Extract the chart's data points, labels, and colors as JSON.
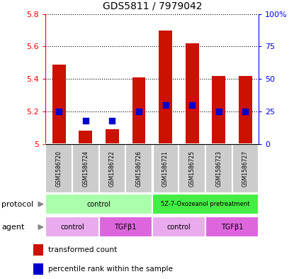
{
  "title": "GDS5811 / 7979042",
  "samples": [
    "GSM1586720",
    "GSM1586724",
    "GSM1586722",
    "GSM1586726",
    "GSM1586721",
    "GSM1586725",
    "GSM1586723",
    "GSM1586727"
  ],
  "red_values": [
    5.49,
    5.08,
    5.09,
    5.41,
    5.7,
    5.62,
    5.42,
    5.42
  ],
  "blue_percentiles": [
    25,
    18,
    18,
    25,
    30,
    30,
    25,
    25
  ],
  "ylim_left": [
    5.0,
    5.8
  ],
  "ylim_right": [
    0,
    100
  ],
  "yticks_left": [
    5.0,
    5.2,
    5.4,
    5.6,
    5.8
  ],
  "yticks_right": [
    0,
    25,
    50,
    75,
    100
  ],
  "ytick_labels_left": [
    "5",
    "5.2",
    "5.4",
    "5.6",
    "5.8"
  ],
  "ytick_labels_right": [
    "0",
    "25",
    "50",
    "75",
    "100%"
  ],
  "protocol_groups": [
    {
      "label": "control",
      "start": 0,
      "end": 4,
      "color": "#aaffaa"
    },
    {
      "label": "5Z-7-Oxozeanol pretreatment",
      "start": 4,
      "end": 8,
      "color": "#44ee44"
    }
  ],
  "agent_groups": [
    {
      "label": "control",
      "start": 0,
      "end": 2,
      "color": "#eaaaee"
    },
    {
      "label": "TGFβ1",
      "start": 2,
      "end": 4,
      "color": "#dd66dd"
    },
    {
      "label": "control",
      "start": 4,
      "end": 6,
      "color": "#eaaaee"
    },
    {
      "label": "TGFβ1",
      "start": 6,
      "end": 8,
      "color": "#dd66dd"
    }
  ],
  "bar_color": "#CC1100",
  "dot_color": "#0000CC",
  "sample_bg_color": "#CCCCCC",
  "legend_red_label": "transformed count",
  "legend_blue_label": "percentile rank within the sample",
  "protocol_label": "protocol",
  "agent_label": "agent",
  "bar_width": 0.5,
  "dot_size": 30,
  "arrow_color": "#888888"
}
